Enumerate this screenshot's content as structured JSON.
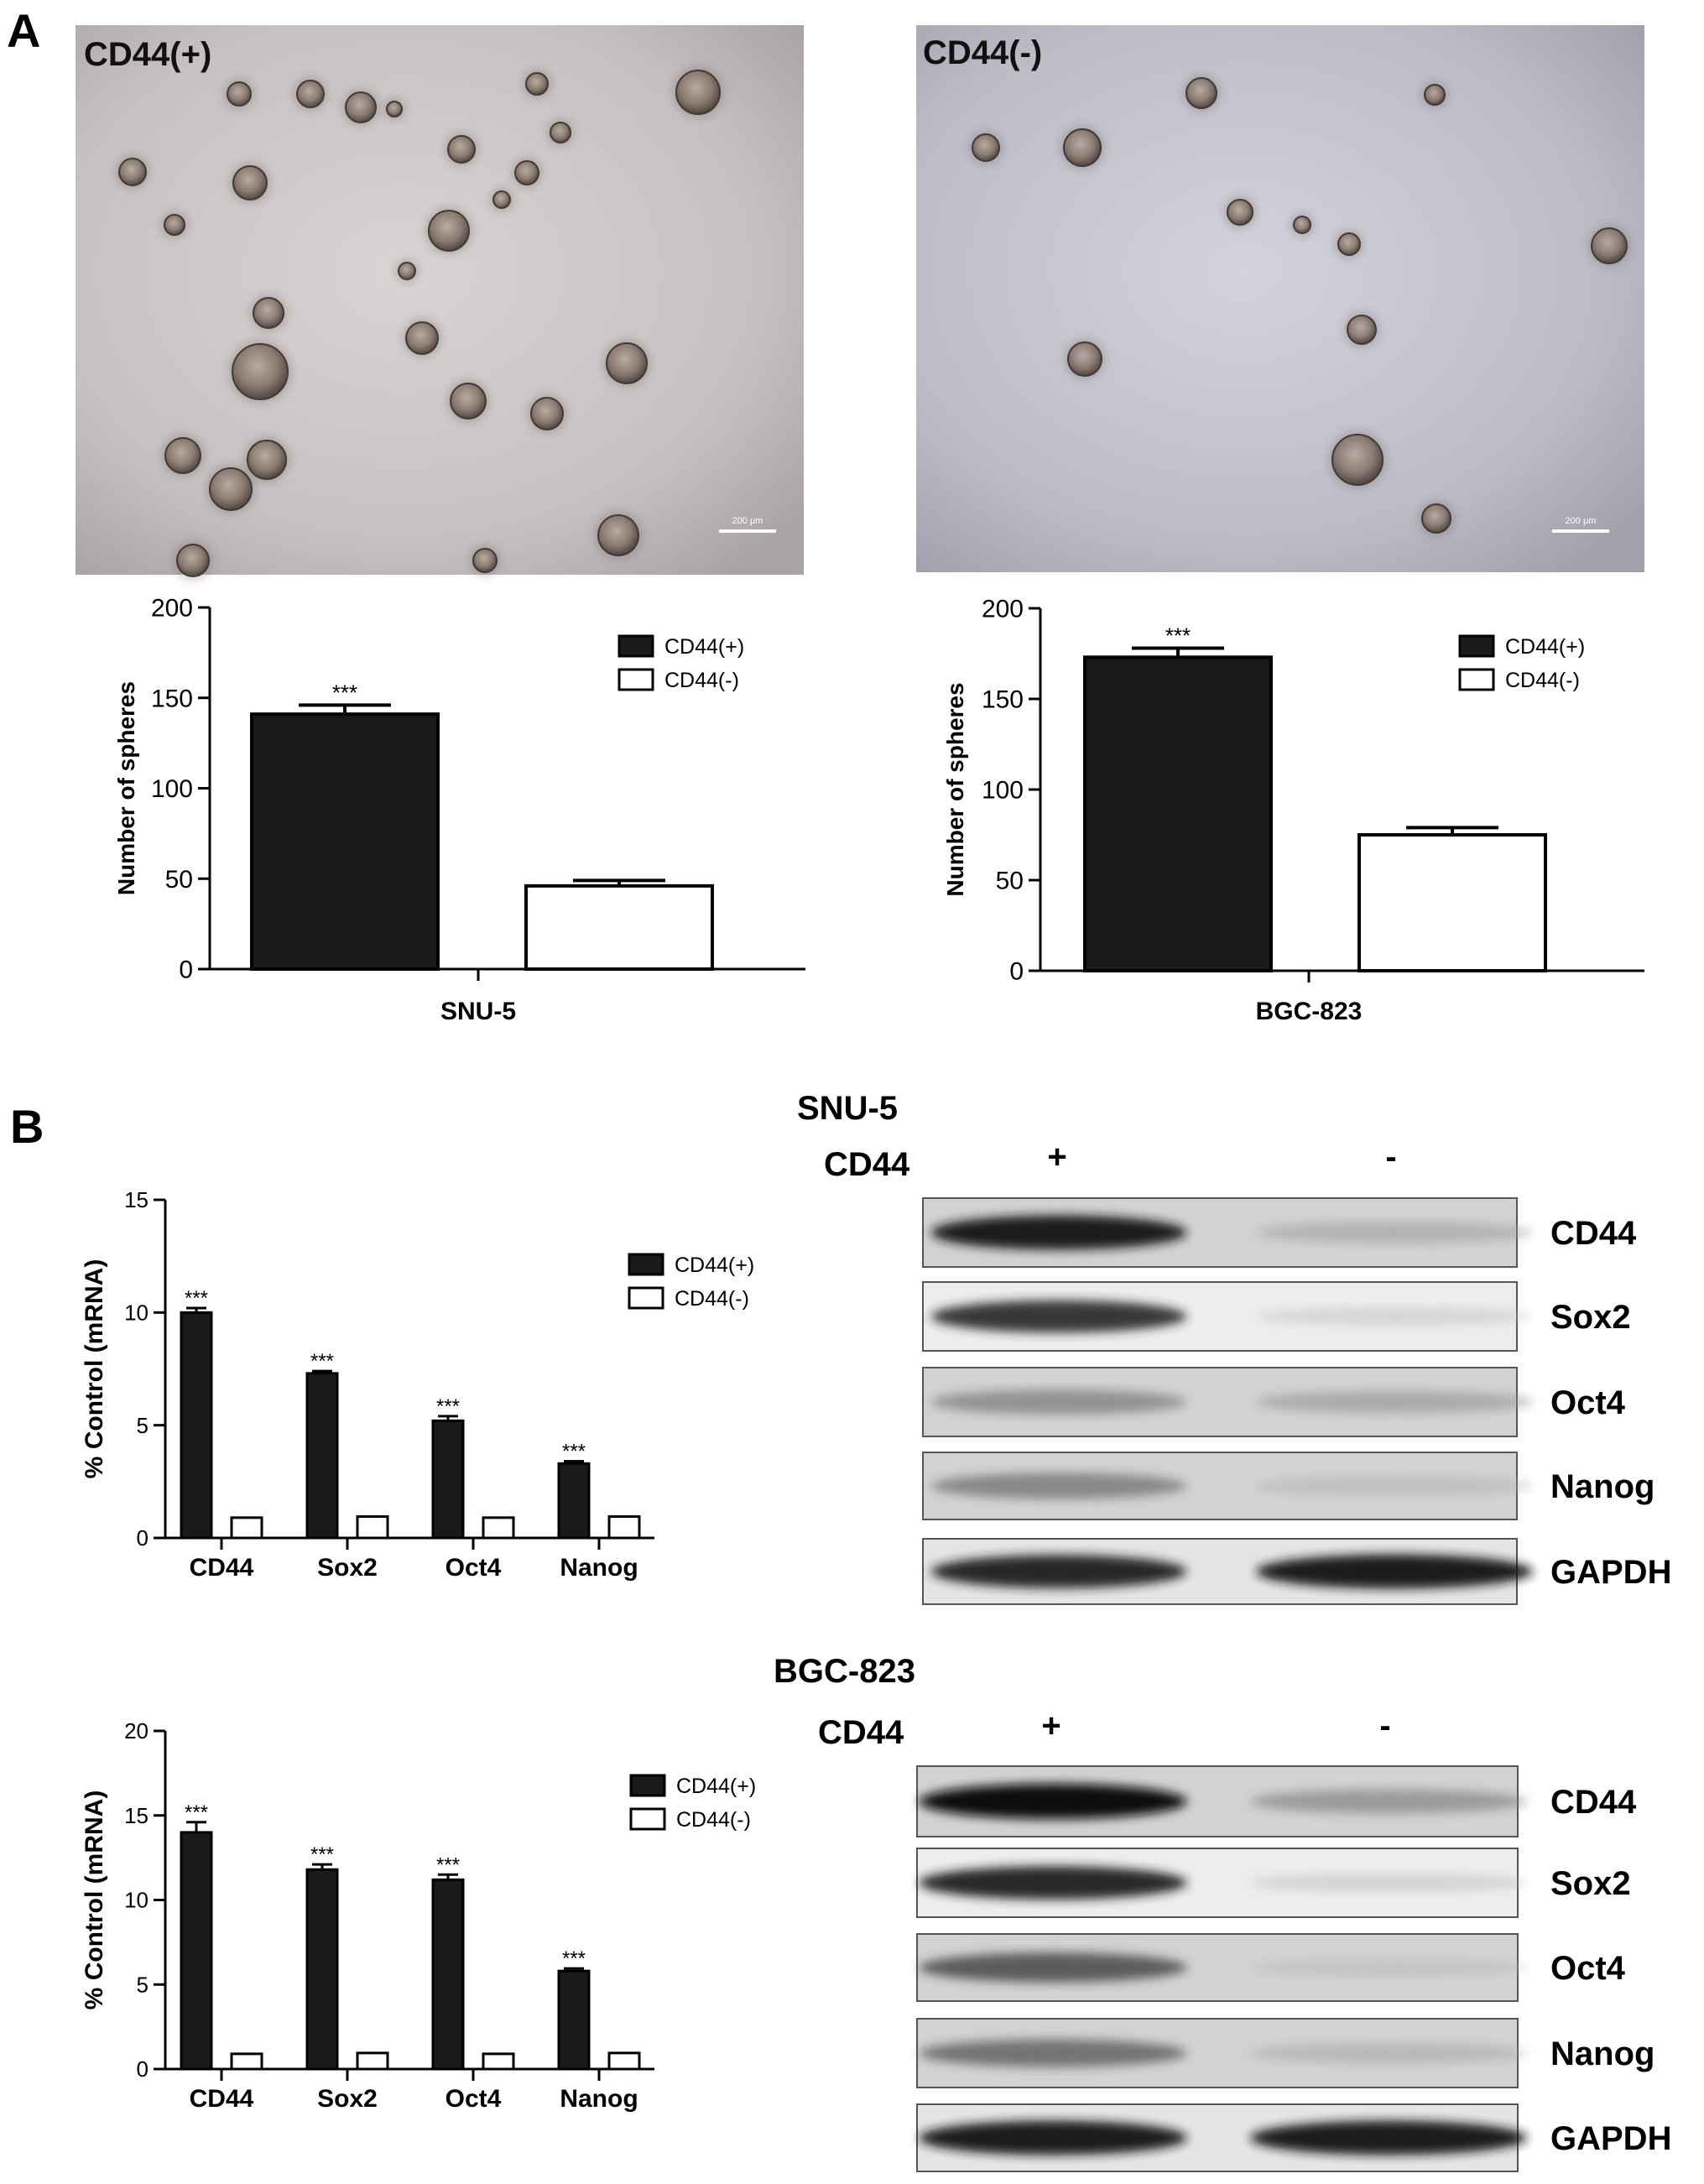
{
  "panels": {
    "A": {
      "letter": "A"
    },
    "B": {
      "letter": "B"
    }
  },
  "micrographs": [
    {
      "label": "CD44(+)",
      "scalebar": "200 μm"
    },
    {
      "label": "CD44(-)",
      "scalebar": "200 μm"
    }
  ],
  "western_blots": [
    {
      "cell_line": "SNU-5",
      "lane_header": "CD44",
      "lanes": [
        "+",
        "-"
      ],
      "proteins": [
        "CD44",
        "Sox2",
        "Oct4",
        "Nanog",
        "GAPDH"
      ],
      "band_intensity": [
        [
          0.95,
          0.25
        ],
        [
          0.85,
          0.08
        ],
        [
          0.45,
          0.3
        ],
        [
          0.5,
          0.15
        ],
        [
          0.9,
          0.95
        ]
      ]
    },
    {
      "cell_line": "BGC-823",
      "lane_header": "CD44",
      "lanes": [
        "+",
        "-"
      ],
      "proteins": [
        "CD44",
        "Sox2",
        "Oct4",
        "Nanog",
        "GAPDH"
      ],
      "band_intensity": [
        [
          1.0,
          0.4
        ],
        [
          0.9,
          0.1
        ],
        [
          0.7,
          0.1
        ],
        [
          0.6,
          0.2
        ],
        [
          0.95,
          0.95
        ]
      ]
    }
  ],
  "chart_data": [
    {
      "type": "bar",
      "title": "",
      "xlabel": "SNU-5",
      "ylabel": "Number of spheres",
      "ylim": [
        0,
        200
      ],
      "yticks": [
        "0",
        "50",
        "100",
        "150",
        "200"
      ],
      "categories": [
        "CD44(+)",
        "CD44(-)"
      ],
      "values": [
        141,
        46
      ],
      "errors": [
        5,
        3
      ],
      "annotations": [
        "***",
        ""
      ],
      "legend": [
        "CD44(+)",
        "CD44(-)"
      ],
      "legend_position": "top-right",
      "colors": [
        "#1a1a1a",
        "#ffffff"
      ]
    },
    {
      "type": "bar",
      "title": "",
      "xlabel": "BGC-823",
      "ylabel": "Number of spheres",
      "ylim": [
        0,
        200
      ],
      "yticks": [
        "0",
        "50",
        "100",
        "150",
        "200"
      ],
      "categories": [
        "CD44(+)",
        "CD44(-)"
      ],
      "values": [
        173,
        75
      ],
      "errors": [
        5,
        4
      ],
      "annotations": [
        "***",
        ""
      ],
      "legend": [
        "CD44(+)",
        "CD44(-)"
      ],
      "legend_position": "top-right",
      "colors": [
        "#1a1a1a",
        "#ffffff"
      ]
    },
    {
      "type": "bar",
      "title": "",
      "xlabel": "",
      "ylabel": "% Control (mRNA)",
      "ylim": [
        0,
        15
      ],
      "yticks": [
        "0",
        "5",
        "10",
        "15"
      ],
      "categories": [
        "CD44",
        "Sox2",
        "Oct4",
        "Nanog"
      ],
      "series": [
        {
          "name": "CD44(+)",
          "values": [
            10.0,
            7.3,
            5.2,
            3.3
          ],
          "errors": [
            0.2,
            0.1,
            0.2,
            0.1
          ]
        },
        {
          "name": "CD44(-)",
          "values": [
            0.9,
            0.95,
            0.9,
            0.95
          ],
          "errors": [
            0,
            0,
            0,
            0
          ]
        }
      ],
      "annotations": [
        "***",
        "***",
        "***",
        "***"
      ],
      "legend_position": "top-right",
      "colors": [
        "#1a1a1a",
        "#ffffff"
      ]
    },
    {
      "type": "bar",
      "title": "",
      "xlabel": "",
      "ylabel": "% Control (mRNA)",
      "ylim": [
        0,
        20
      ],
      "yticks": [
        "0",
        "5",
        "10",
        "15",
        "20"
      ],
      "categories": [
        "CD44",
        "Sox2",
        "Oct4",
        "Nanog"
      ],
      "series": [
        {
          "name": "CD44(+)",
          "values": [
            14.0,
            11.8,
            11.2,
            5.8
          ],
          "errors": [
            0.6,
            0.3,
            0.3,
            0.15
          ]
        },
        {
          "name": "CD44(-)",
          "values": [
            0.9,
            0.95,
            0.9,
            0.95
          ],
          "errors": [
            0,
            0,
            0,
            0
          ]
        }
      ],
      "annotations": [
        "***",
        "***",
        "***",
        "***"
      ],
      "legend_position": "top-right",
      "colors": [
        "#1a1a1a",
        "#ffffff"
      ]
    }
  ]
}
